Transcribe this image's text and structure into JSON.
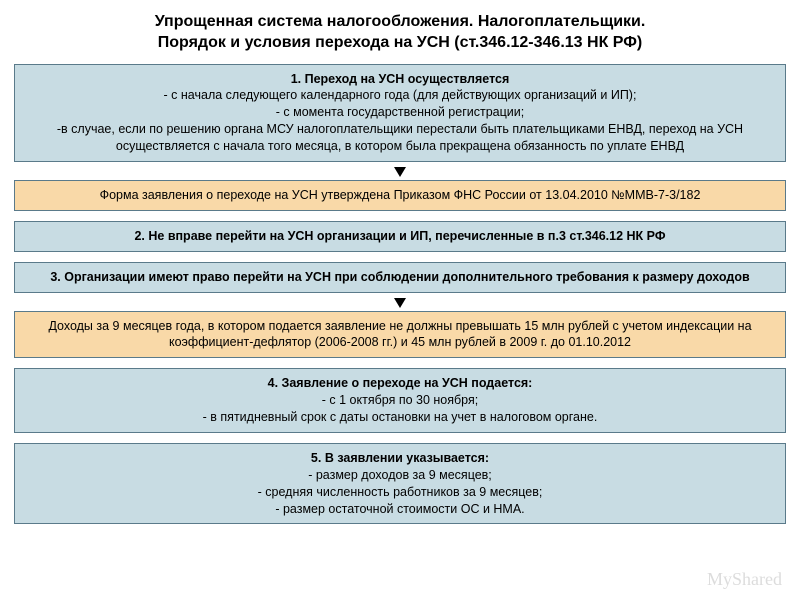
{
  "header": {
    "line1": "Упрощенная система налогообложения. Налогоплательщики.",
    "line2": "Порядок и условия перехода на УСН (ст.346.12-346.13 НК РФ)"
  },
  "boxes": {
    "box1": {
      "color": "blue",
      "title": "1. Переход на УСН осуществляется",
      "lines": [
        "- с начала следующего календарного года (для действующих организаций и ИП);",
        "- с момента государственной регистрации;",
        "-в случае, если по решению органа МСУ налогоплательщики перестали быть плательщиками ЕНВД, переход на УСН осуществляется с начала того месяца, в котором была прекращена обязанность по уплате ЕНВД"
      ]
    },
    "box2": {
      "color": "orange",
      "text": "Форма заявления о переходе на УСН утверждена Приказом ФНС России от 13.04.2010 №ММВ-7-3/182"
    },
    "box3": {
      "color": "blue",
      "bold": true,
      "text": "2. Не вправе перейти на УСН организации и ИП, перечисленные в п.3 ст.346.12 НК РФ"
    },
    "box4": {
      "color": "blue",
      "bold": true,
      "text": "3. Организации имеют право перейти на УСН при соблюдении дополнительного требования к размеру доходов"
    },
    "box5": {
      "color": "orange",
      "text": "Доходы за 9 месяцев года, в котором подается заявление не должны превышать 15 млн рублей с учетом индексации на коэффициент-дефлятор (2006-2008 гг.) и 45 млн рублей в 2009 г. до 01.10.2012"
    },
    "box6": {
      "color": "blue",
      "title": "4. Заявление о переходе на УСН подается:",
      "lines": [
        "- с 1 октября по 30 ноября;",
        "- в пятидневный срок с даты остановки на учет в налоговом органе."
      ]
    },
    "box7": {
      "color": "blue",
      "title": "5. В заявлении указывается:",
      "lines": [
        "- размер доходов за 9 месяцев;",
        "- средняя численность работников за 9 месяцев;",
        "- размер остаточной стоимости ОС и НМА."
      ]
    }
  },
  "style": {
    "blue_bg": "#c8dce3",
    "orange_bg": "#f9d9a8",
    "border_color": "#5a7a8a",
    "page_bg": "#ffffff",
    "title_fontsize": 16,
    "body_fontsize": 12.5,
    "watermark_text": "MyShared"
  }
}
